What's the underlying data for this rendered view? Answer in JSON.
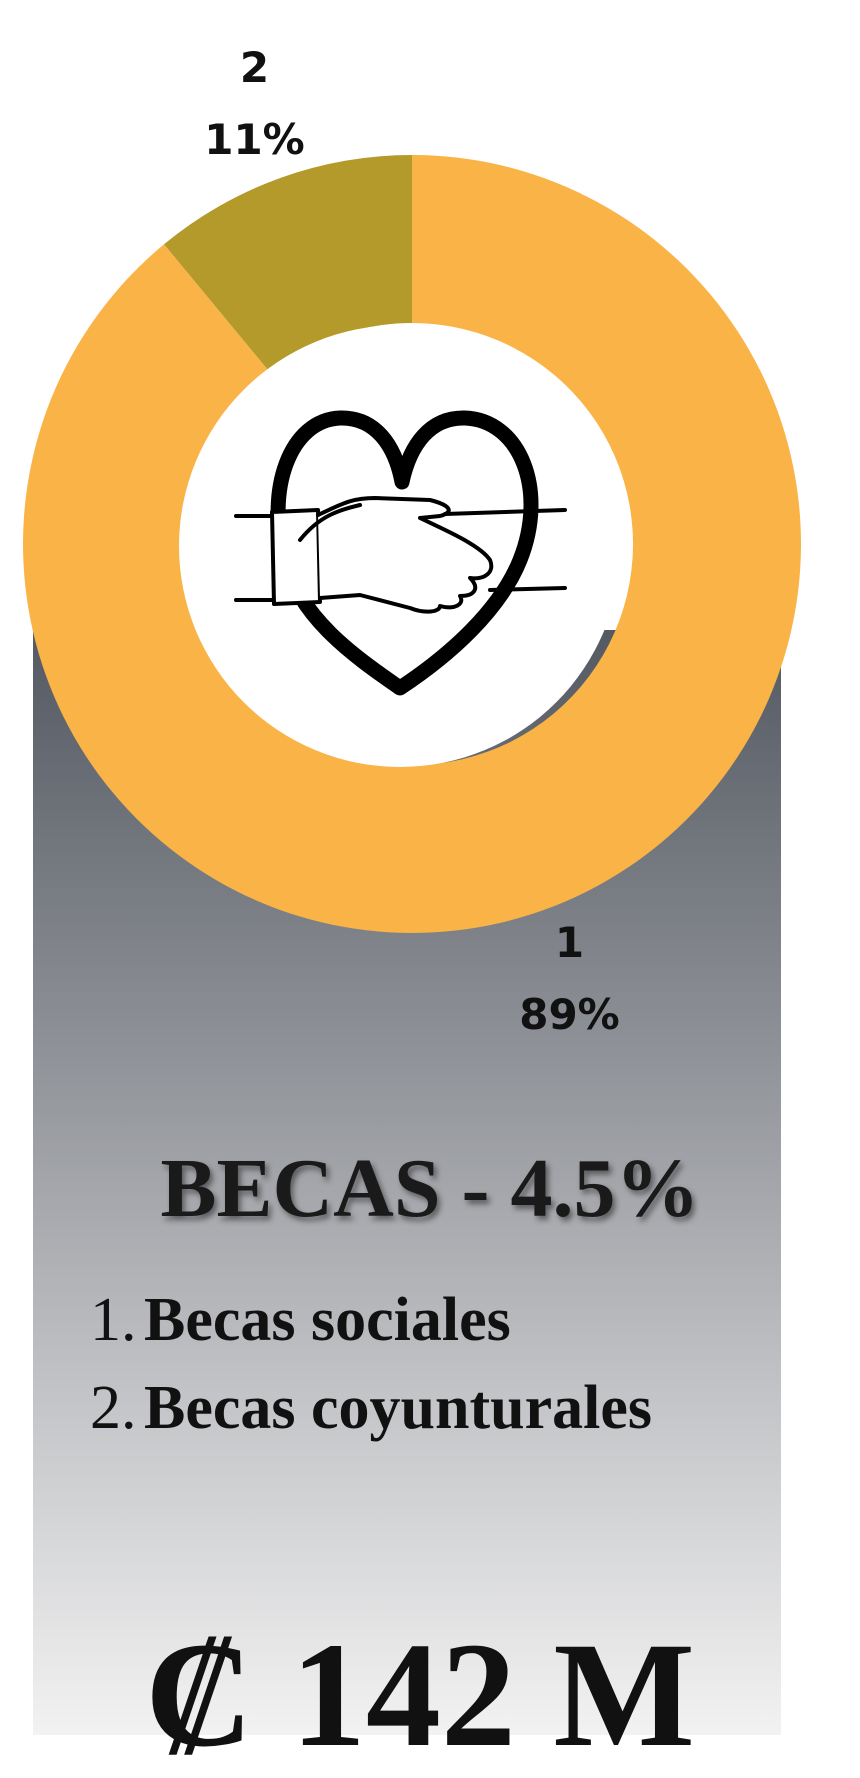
{
  "chart_data": {
    "type": "pie",
    "donut": true,
    "categories": [
      "1",
      "2"
    ],
    "values": [
      89,
      11
    ],
    "value_labels": [
      "89%",
      "11%"
    ],
    "colors": [
      "#f9b347",
      "#b39a2a"
    ]
  },
  "heading": "BECAS - 4.5%",
  "items": [
    {
      "number": "1.",
      "label": "Becas sociales"
    },
    {
      "number": "2.",
      "label": "Becas coyunturales"
    }
  ],
  "amount": "₡ 142 M"
}
